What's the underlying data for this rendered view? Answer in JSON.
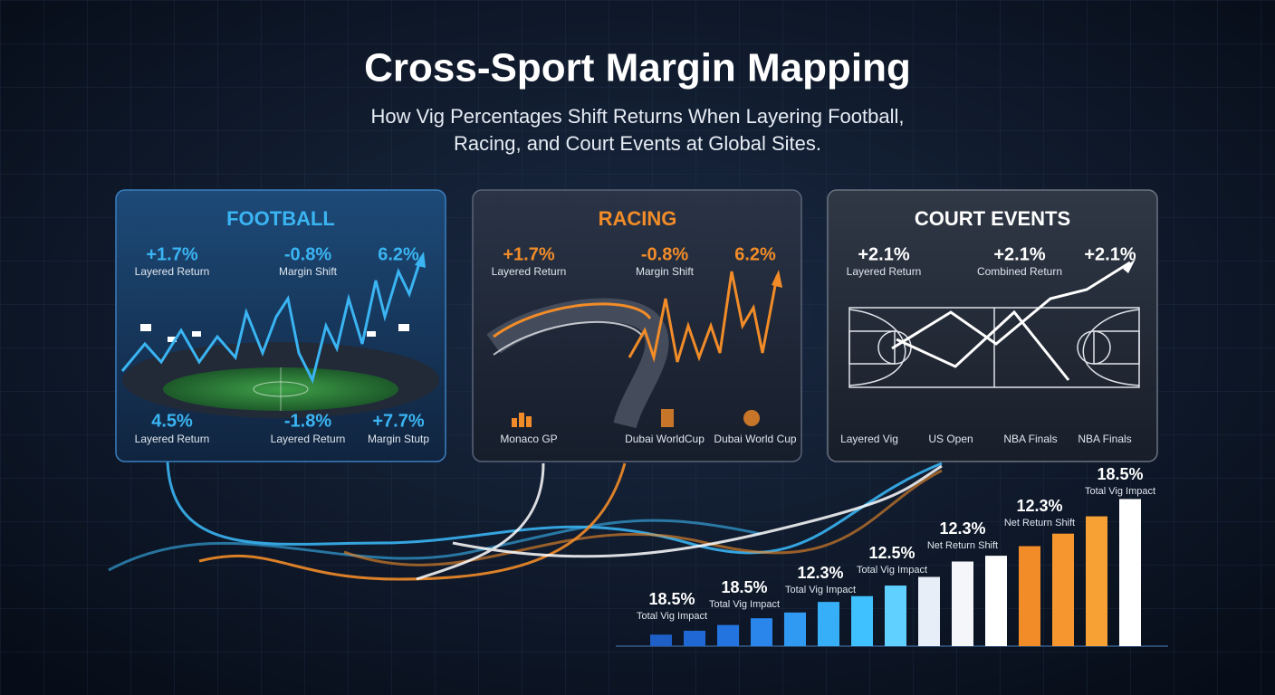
{
  "header": {
    "title": "Cross-Sport Margin Mapping",
    "subtitle_lines": [
      "How Vig Percentages Shift Returns When Layering Football,",
      "Racing, and Court Events at Global Sites."
    ]
  },
  "panels": [
    {
      "title": "FOOTBALL",
      "color": "#3ab4f2",
      "top_stats": [
        {
          "value": "+1.7%",
          "label": "Layered Return"
        },
        {
          "value": "-0.8%",
          "label": "Margin Shift"
        },
        {
          "value": "6.2%"
        }
      ],
      "bottom_stats": [
        {
          "value": "4.5%",
          "label": "Layered Return"
        },
        {
          "value": "-1.8%",
          "label": "Layered Return"
        },
        {
          "value": "+7.7%",
          "label": "Margin Stutp"
        }
      ]
    },
    {
      "title": "RACING",
      "color": "#f28c28",
      "top_stats": [
        {
          "value": "+1.7%",
          "label": "Layered Return"
        },
        {
          "value": "-0.8%",
          "label": "Margin Shift"
        },
        {
          "value": "6.2%"
        }
      ],
      "bottom_stats": [
        {
          "label": "Monaco GP"
        },
        {
          "label": "Dubai WorldCup"
        },
        {
          "label": "Dubai World Cup"
        }
      ]
    },
    {
      "title": "COURT EVENTS",
      "color": "#ffffff",
      "top_stats": [
        {
          "value": "+2.1%",
          "label": "Layered Return"
        },
        {
          "value": "+2.1%",
          "label": "Combined Return"
        },
        {
          "value": "+2.1%"
        }
      ],
      "bottom_stats": [
        {
          "label": "Layered Vig"
        },
        {
          "label": "US Open"
        },
        {
          "label": "NBA Finals"
        },
        {
          "label": "NBA Finals"
        }
      ]
    }
  ],
  "impact_chart": {
    "values": [
      12,
      16,
      22,
      29,
      35,
      46,
      52,
      63,
      72,
      88,
      94,
      104,
      117,
      135,
      153
    ],
    "ylim": [
      0,
      160
    ],
    "colors": [
      "#1e5fc8",
      "#2068d4",
      "#2474e0",
      "#2a86ea",
      "#309af2",
      "#36aef8",
      "#3fc0ff",
      "#5fd0ff",
      "#e8eef8",
      "#f4f6fa",
      "#ffffff",
      "#f28c28",
      "#f5962e",
      "#f7a034",
      "#ffffff"
    ],
    "annotations": [
      {
        "value": "18.5%",
        "label": "Total Vig Impact"
      },
      {
        "value": "18.5%",
        "label": "Total Vig Impact"
      },
      {
        "value": "12.3%",
        "label": "Total Vig Impact"
      },
      {
        "value": "12.5%",
        "label": "Total Vig Impact"
      },
      {
        "value": "12.3%",
        "label": "Net Return Shift"
      },
      {
        "value": "12.3%",
        "label": "Net Return Shift"
      },
      {
        "value": "18.5%",
        "label": "Total Vig Impact"
      }
    ]
  }
}
